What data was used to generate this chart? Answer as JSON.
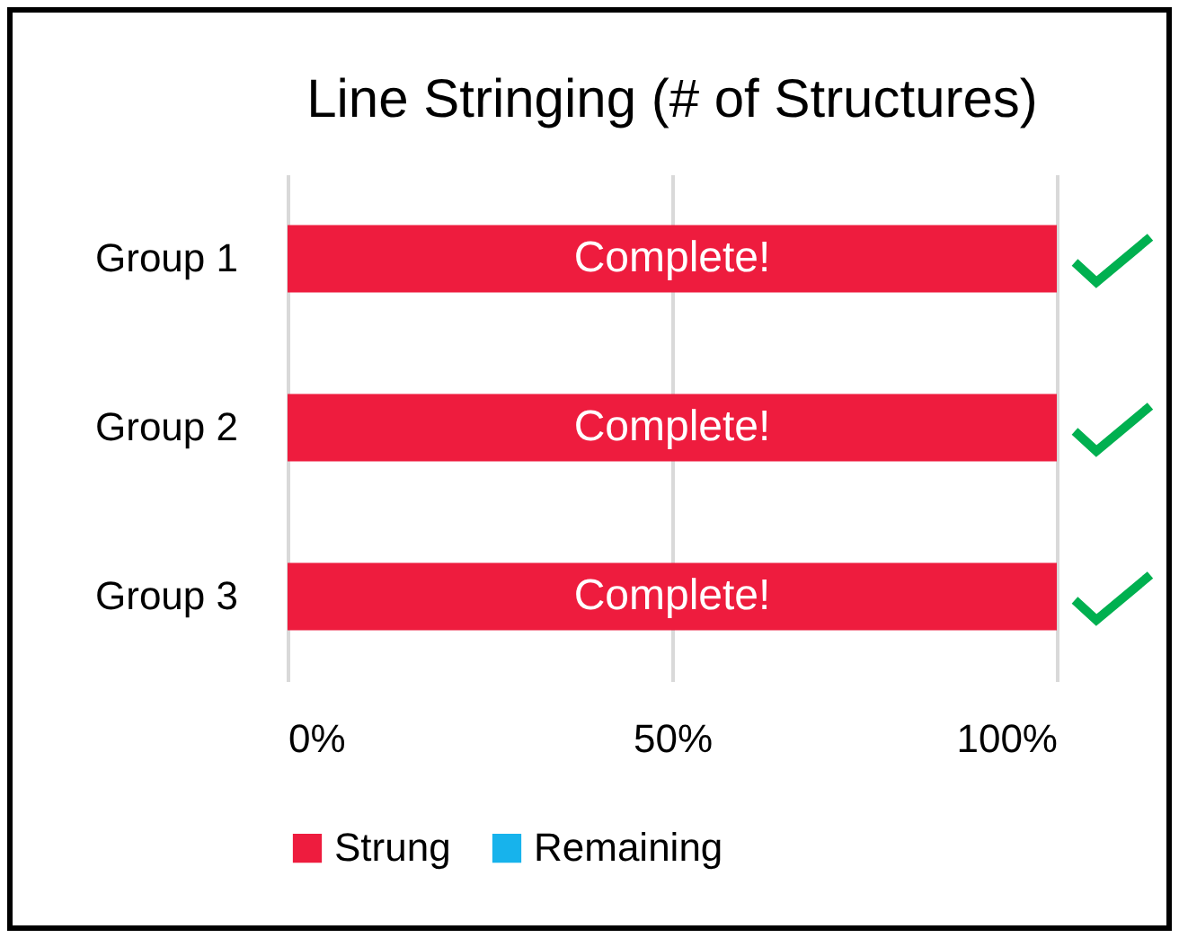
{
  "chart_data": {
    "type": "bar",
    "title": "Line Stringing (# of Structures)",
    "orientation": "horizontal",
    "categories": [
      "Group 1",
      "Group 2",
      "Group 3"
    ],
    "series": [
      {
        "name": "Strung",
        "color": "#ee1c3e",
        "values": [
          100,
          100,
          100
        ],
        "value_labels": [
          "Complete!",
          "Complete!",
          "Complete!"
        ]
      },
      {
        "name": "Remaining",
        "color": "#17b3ec",
        "values": [
          0,
          0,
          0
        ]
      }
    ],
    "xlim": [
      0,
      100
    ],
    "xticks": [
      {
        "value": 0,
        "label": "0%"
      },
      {
        "value": 50,
        "label": "50%"
      },
      {
        "value": 100,
        "label": "100%"
      }
    ],
    "grid": "x",
    "legend": "bottom"
  }
}
